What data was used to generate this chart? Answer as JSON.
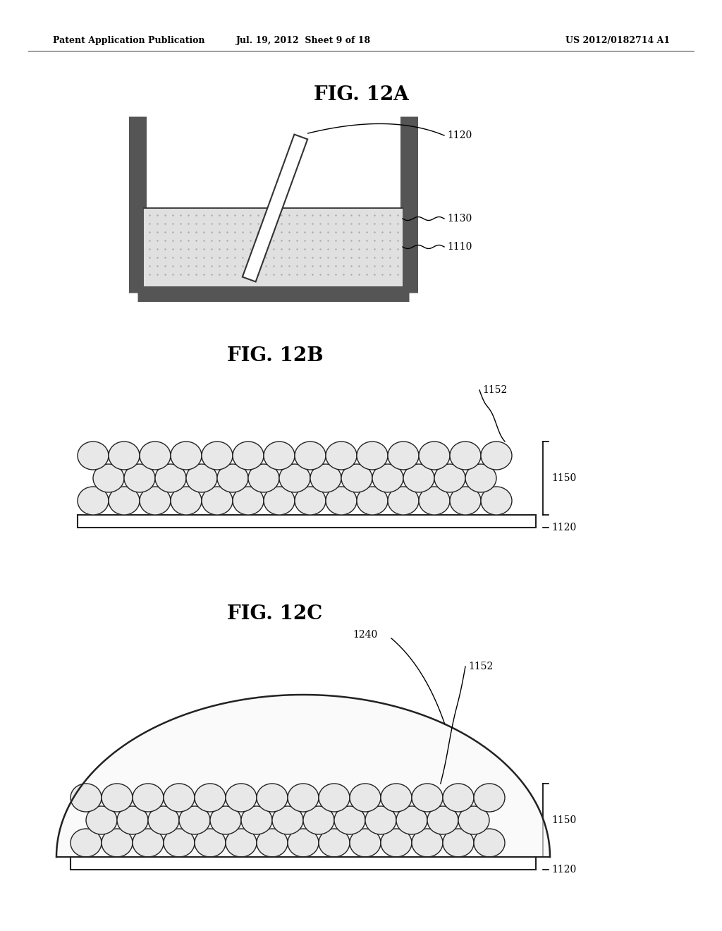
{
  "bg_color": "#ffffff",
  "header_left": "Patent Application Publication",
  "header_center": "Jul. 19, 2012  Sheet 9 of 18",
  "header_right": "US 2012/0182714 A1",
  "fig12a_title": "FIG. 12A",
  "fig12b_title": "FIG. 12B",
  "fig12c_title": "FIG. 12C",
  "container_color": "#555555",
  "liquid_color": "#e0e0e0",
  "sphere_face_color": "#e8e8e8",
  "sphere_edge_color": "#222222",
  "text_color": "#000000"
}
